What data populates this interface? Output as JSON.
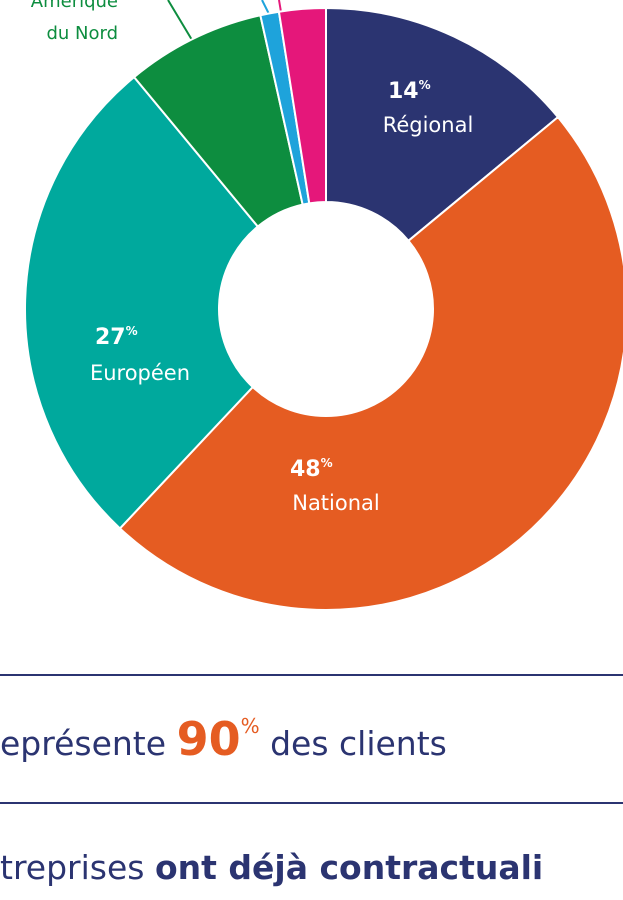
{
  "chart_data": {
    "type": "donut",
    "categories": [
      "Régional",
      "National",
      "Européen",
      "Amérique du Nord",
      null,
      null
    ],
    "values": [
      14,
      48,
      27,
      7.5,
      1,
      2.5
    ],
    "unit": "%",
    "colors": [
      "#2b3471",
      "#e55c22",
      "#00a99d",
      "#0d8d3f",
      "#1ea3db",
      "#e5177a"
    ]
  },
  "footer": {
    "line1": {
      "before": "eprésente",
      "highlight": "90",
      "unit": "%",
      "after": "des clients"
    },
    "line2": {
      "normal": "treprises",
      "bold": "ont déjà contractuali"
    }
  }
}
